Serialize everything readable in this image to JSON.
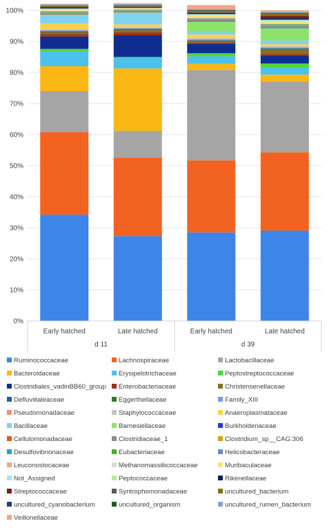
{
  "chart_data": {
    "type": "bar",
    "stacked": true,
    "percent_stacked": true,
    "ylim": [
      0,
      100
    ],
    "yticks": [
      "0%",
      "10%",
      "20%",
      "30%",
      "40%",
      "50%",
      "60%",
      "70%",
      "80%",
      "90%",
      "100%"
    ],
    "categories": [
      "Early  hatched",
      "Late hatched",
      "Early  hatched",
      "Late hatched"
    ],
    "groups": [
      {
        "label": "d 11",
        "categories": [
          0,
          1
        ]
      },
      {
        "label": "d 39",
        "categories": [
          2,
          3
        ]
      }
    ],
    "legend_position": "bottom",
    "series": [
      {
        "name": "Ruminococcaceae",
        "color": "#3d85e8",
        "values": [
          34.2,
          27.3,
          28.5,
          29.1
        ]
      },
      {
        "name": "Lachnospiraceae",
        "color": "#f26322",
        "values": [
          26.6,
          25.3,
          23.2,
          25.2
        ]
      },
      {
        "name": "Lactobacillaceae",
        "color": "#a5a5a5",
        "values": [
          13.2,
          8.6,
          29.1,
          22.7
        ]
      },
      {
        "name": "Bacteroidaceae",
        "color": "#fbb714",
        "values": [
          8.0,
          20.1,
          2.0,
          2.3
        ]
      },
      {
        "name": "Erysipelotrichaceae",
        "color": "#4cc1ee",
        "values": [
          4.8,
          3.4,
          2.4,
          2.3
        ]
      },
      {
        "name": "Peptostreptococcaceae",
        "color": "#4dd634",
        "values": [
          0.8,
          0.3,
          1.0,
          1.3
        ]
      },
      {
        "name": "Clostridiales_vadinBB60_group",
        "color": "#0f2d91",
        "values": [
          4.0,
          7.0,
          3.0,
          2.6
        ]
      },
      {
        "name": "Enterobacteriaceae",
        "color": "#9e3312",
        "values": [
          0.8,
          0.9,
          0.4,
          0.4
        ]
      },
      {
        "name": "Christensenellaceae",
        "color": "#8a6d21",
        "values": [
          0.6,
          0.8,
          0.5,
          1.5
        ]
      },
      {
        "name": "Defluviitaleaceae",
        "color": "#1f5fa8",
        "values": [
          0.2,
          0.2,
          0.2,
          0.3
        ]
      },
      {
        "name": "Eggerthellaceae",
        "color": "#2c7a2c",
        "values": [
          0.1,
          0.1,
          0.1,
          0.1
        ]
      },
      {
        "name": "Family_XIII",
        "color": "#6fa1dc",
        "values": [
          0.3,
          0.3,
          0.3,
          0.3
        ]
      },
      {
        "name": "Pseudomonadaceae",
        "color": "#f5916a",
        "values": [
          0.1,
          0.1,
          0.1,
          0.1
        ]
      },
      {
        "name": "Staphylococcaceae",
        "color": "#c4c4c4",
        "values": [
          0.2,
          0.3,
          0.3,
          0.3
        ]
      },
      {
        "name": "Anaeroplasmataceae",
        "color": "#fcd04d",
        "values": [
          1.9,
          0.8,
          1.1,
          0.6
        ]
      },
      {
        "name": "Bacillaceae",
        "color": "#7ed3f0",
        "values": [
          2.6,
          3.6,
          0.8,
          1.2
        ]
      },
      {
        "name": "Barnesiellaceae",
        "color": "#8ee26b",
        "values": [
          0.2,
          0.2,
          3.4,
          4.0
        ]
      },
      {
        "name": "Burkholderiaceae",
        "color": "#1f3fc8",
        "values": [
          0.1,
          0.1,
          0.2,
          0.2
        ]
      },
      {
        "name": "Cellulomonadaceae",
        "color": "#e0581c",
        "values": [
          0.1,
          0.1,
          0.1,
          0.1
        ]
      },
      {
        "name": "Clostridiaceae_1",
        "color": "#8c8c8c",
        "values": [
          0.4,
          0.3,
          0.4,
          0.5
        ]
      },
      {
        "name": "Clostridium_sp__CAG:306",
        "color": "#d99e1a",
        "values": [
          0.1,
          0.1,
          0.1,
          0.1
        ]
      },
      {
        "name": "Desulfovibrionaceae",
        "color": "#2a9fd6",
        "values": [
          0.1,
          0.1,
          0.1,
          0.1
        ]
      },
      {
        "name": "Eubacteriaceae",
        "color": "#45b02a",
        "values": [
          0.2,
          0.1,
          0.1,
          0.2
        ]
      },
      {
        "name": "Helicobacteraceae",
        "color": "#5e8fc9",
        "values": [
          0.1,
          0.1,
          0.1,
          0.1
        ]
      },
      {
        "name": "Leuconostocaceae",
        "color": "#f4a582",
        "values": [
          0.1,
          0.1,
          0.1,
          0.1
        ]
      },
      {
        "name": "Methanomassiliicoccaceae",
        "color": "#d9d9d9",
        "values": [
          0.1,
          0.1,
          0.1,
          0.1
        ]
      },
      {
        "name": "Muribaculaceae",
        "color": "#fde27a",
        "values": [
          0.3,
          0.2,
          0.6,
          0.6
        ]
      },
      {
        "name": "Not_Assigned",
        "color": "#a9e2f5",
        "values": [
          0.2,
          0.1,
          0.3,
          0.4
        ]
      },
      {
        "name": "Peptococcaceae",
        "color": "#b6ec98",
        "values": [
          0.2,
          0.1,
          0.2,
          0.2
        ]
      },
      {
        "name": "Rikenellaceae",
        "color": "#101a5c",
        "values": [
          0.3,
          0.2,
          0.4,
          0.5
        ]
      },
      {
        "name": "Streptococcaceae",
        "color": "#7a1f0e",
        "values": [
          0.1,
          0.1,
          0.1,
          0.7
        ]
      },
      {
        "name": "Syntrophomonadaceae",
        "color": "#5a5a5a",
        "values": [
          0.1,
          0.1,
          0.1,
          0.2
        ]
      },
      {
        "name": "uncultured_bacterium",
        "color": "#8c6a1a",
        "values": [
          0.3,
          0.3,
          0.5,
          0.6
        ]
      },
      {
        "name": "uncultured_cyanobacterium",
        "color": "#1f3f7a",
        "values": [
          0.1,
          0.1,
          0.1,
          0.1
        ]
      },
      {
        "name": "uncultured_organism",
        "color": "#1f5f1f",
        "values": [
          0.1,
          0.1,
          0.1,
          0.1
        ]
      },
      {
        "name": "uncultured_rumen_bacterium",
        "color": "#7ea6d8",
        "values": [
          0.3,
          0.3,
          0.3,
          0.3
        ]
      },
      {
        "name": "Veillonellaceae",
        "color": "#f0a589",
        "values": [
          0.2,
          0.3,
          1.3,
          0.5
        ]
      }
    ]
  }
}
